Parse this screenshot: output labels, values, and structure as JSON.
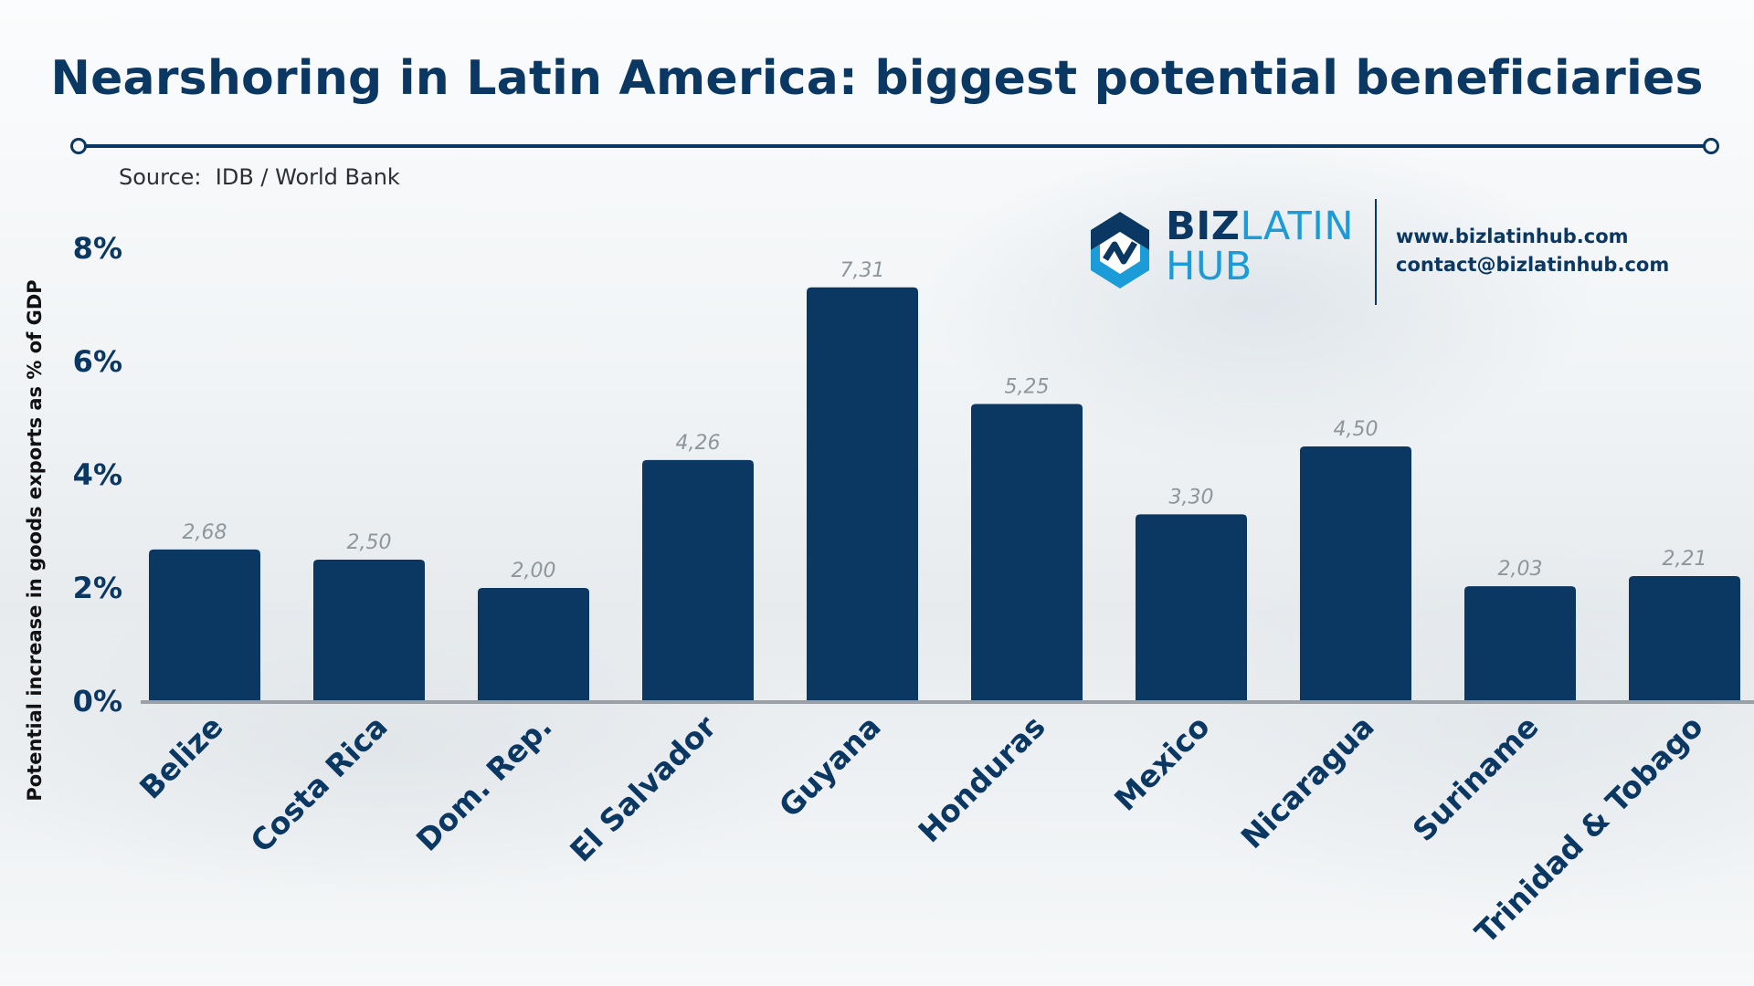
{
  "header": {
    "title": "Nearshoring in Latin America: biggest potential beneficiaries",
    "source": "Source:  IDB / World Bank"
  },
  "branding": {
    "logo_icon": "biz-latin-hub-logo-icon",
    "brand_part1": "BIZ",
    "brand_part2": "LATIN",
    "brand_part3": "HUB",
    "website": "www.bizlatinhub.com",
    "email": "contact@bizlatinhub.com"
  },
  "colors": {
    "bar": "#0b3763",
    "brand_dark": "#0b3763",
    "brand_light": "#1b9bd7",
    "value_label": "#8e969c",
    "axis_line": "#9aa0a5"
  },
  "chart_data": {
    "type": "bar",
    "title": "Nearshoring in Latin America: biggest potential beneficiaries",
    "ylabel": "Potential increase in goods exports as % of GDP",
    "xlabel": "",
    "ylim": [
      0,
      8
    ],
    "yticks": [
      0,
      2,
      4,
      6,
      8
    ],
    "ytick_labels": [
      "0%",
      "2%",
      "4%",
      "6%",
      "8%"
    ],
    "grid": false,
    "categories": [
      "Belize",
      "Costa Rica",
      "Dom. Rep.",
      "El Salvador",
      "Guyana",
      "Honduras",
      "Mexico",
      "Nicaragua",
      "Suriname",
      "Trinidad & Tobago"
    ],
    "values": [
      2.68,
      2.5,
      2.0,
      4.26,
      7.31,
      5.25,
      3.3,
      4.5,
      2.03,
      2.21
    ],
    "value_labels": [
      "2,68",
      "2,50",
      "2,00",
      "4,26",
      "7,31",
      "5,25",
      "3,30",
      "4,50",
      "2,03",
      "2,21"
    ]
  }
}
